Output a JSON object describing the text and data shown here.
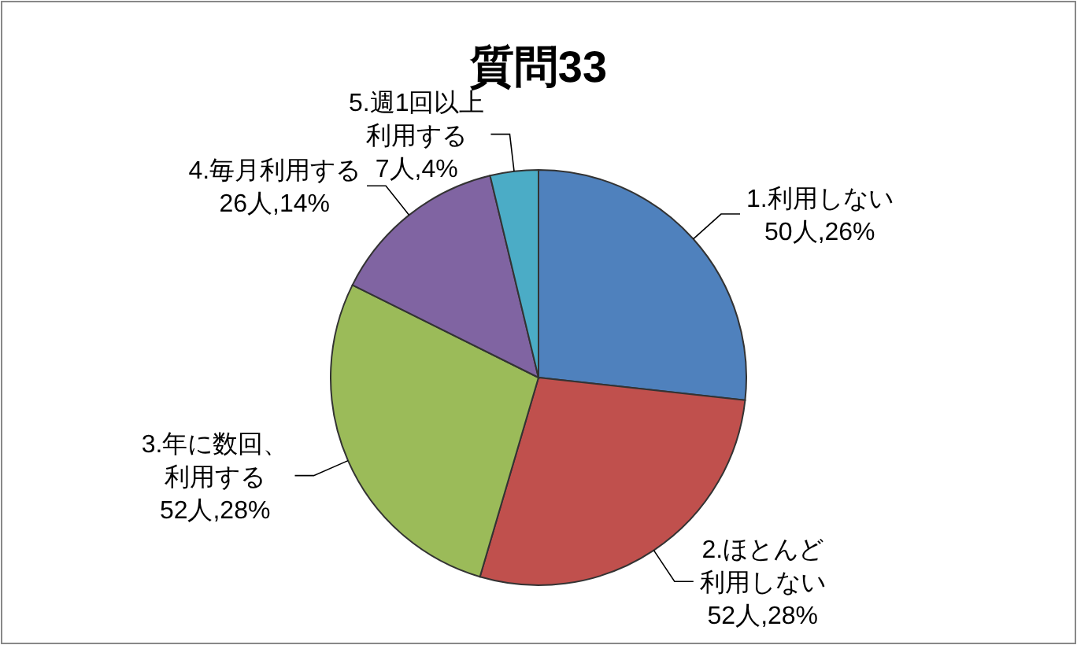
{
  "chart_data": {
    "type": "pie",
    "title": "質問33",
    "categories": [
      "1.利用しない",
      "2.ほとんど利用しない",
      "3.年に数回、利用する",
      "4.毎月利用する",
      "5.週1回以上利用する"
    ],
    "values": [
      50,
      52,
      52,
      26,
      7
    ],
    "value_labels": [
      "50人,26%",
      "52人,28%",
      "52人,28%",
      "26人,14%",
      "7人,4%"
    ],
    "colors": [
      "#4f81bd",
      "#c0504d",
      "#9bbb59",
      "#8064a2",
      "#4bacc6"
    ]
  }
}
